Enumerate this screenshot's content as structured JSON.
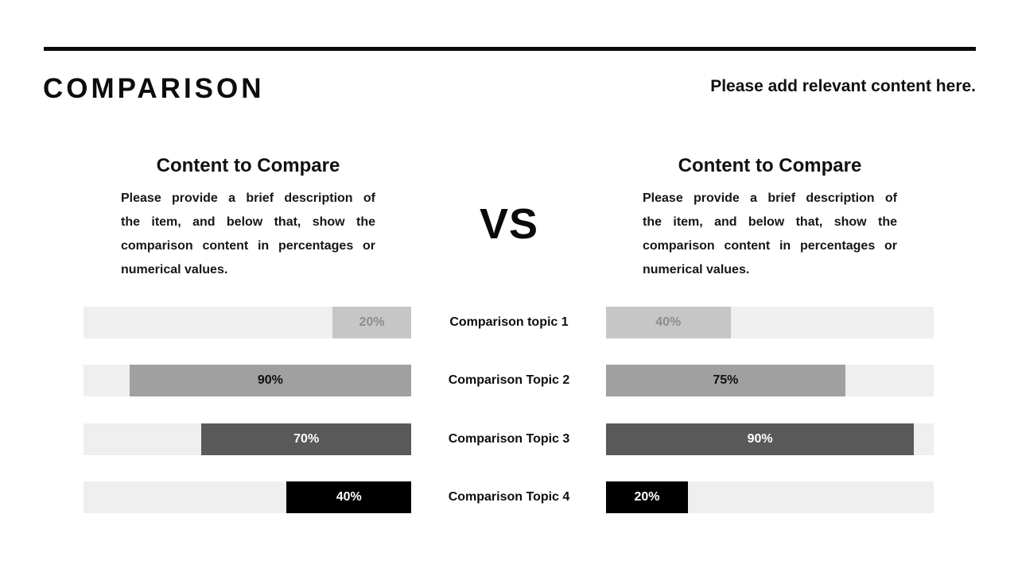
{
  "header": {
    "title": "COMPARISON",
    "subtitle": "Please add relevant content here."
  },
  "vs_label": "VS",
  "columns": {
    "left": {
      "heading": "Content to Compare",
      "description_lines": [
        "Please provide a brief description of",
        "the item, and below that, show the",
        "comparison content in percentages or",
        "numerical values."
      ]
    },
    "right": {
      "heading": "Content to Compare",
      "description_lines": [
        "Please provide a brief description of",
        "the item, and below that, show the",
        "comparison content in percentages or",
        "numerical values."
      ]
    }
  },
  "rows": [
    {
      "label": "Comparison topic 1",
      "left": {
        "value": "20%",
        "fill_width": "24%"
      },
      "right": {
        "value": "40%",
        "fill_width": "38%"
      }
    },
    {
      "label": "Comparison Topic 2",
      "left": {
        "value": "90%",
        "fill_width": "86%"
      },
      "right": {
        "value": "75%",
        "fill_width": "73%"
      }
    },
    {
      "label": "Comparison Topic 3",
      "left": {
        "value": "70%",
        "fill_width": "64%"
      },
      "right": {
        "value": "90%",
        "fill_width": "94%"
      }
    },
    {
      "label": "Comparison Topic 4",
      "left": {
        "value": "40%",
        "fill_width": "38%"
      },
      "right": {
        "value": "20%",
        "fill_width": "25%"
      }
    }
  ],
  "colors": {
    "background": "#ffffff",
    "divider_rule": "#0a0a0a",
    "bar_track": "#efefef",
    "fill_level_1": "#c6c6c6",
    "fill_level_2": "#a0a0a0",
    "fill_level_3": "#595959",
    "fill_level_4": "#000000",
    "value_text_level_1": "#8c8c8c",
    "value_text_level_2": "#111111",
    "value_text_level_3": "#ffffff",
    "value_text_level_4": "#ffffff"
  },
  "chart_data": {
    "type": "bar",
    "categories": [
      "Comparison topic 1",
      "Comparison Topic 2",
      "Comparison Topic 3",
      "Comparison Topic 4"
    ],
    "series": [
      {
        "name": "Content to Compare (left)",
        "values": [
          20,
          90,
          70,
          40
        ]
      },
      {
        "name": "Content to Compare (right)",
        "values": [
          40,
          75,
          90,
          20
        ]
      }
    ],
    "unit": "%",
    "layout": "mirrored horizontal bars, labels centered between sides, left bars anchored right, right bars anchored left"
  }
}
